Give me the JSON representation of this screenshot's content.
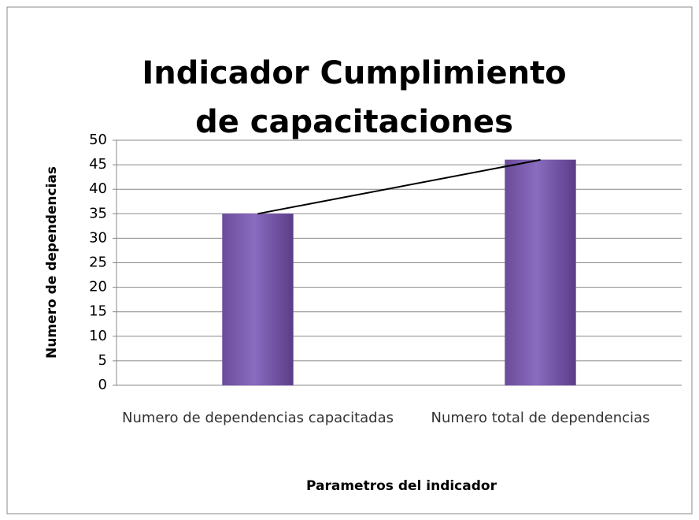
{
  "chart_data": {
    "type": "bar",
    "title": "Indicador Cumplimiento de capacitaciones",
    "categories": [
      "Numero de dependencias capacitadas",
      "Numero total de dependencias"
    ],
    "values": [
      35,
      46
    ],
    "color": "#7b5aa8",
    "line_color": "#000000",
    "ylim": [
      0,
      50
    ],
    "yticks": [
      0,
      5,
      10,
      15,
      20,
      25,
      30,
      35,
      40,
      45,
      50
    ],
    "grid": true,
    "ylabel": "Numero de dependencias",
    "xlabel": "Parametros del indicador"
  }
}
